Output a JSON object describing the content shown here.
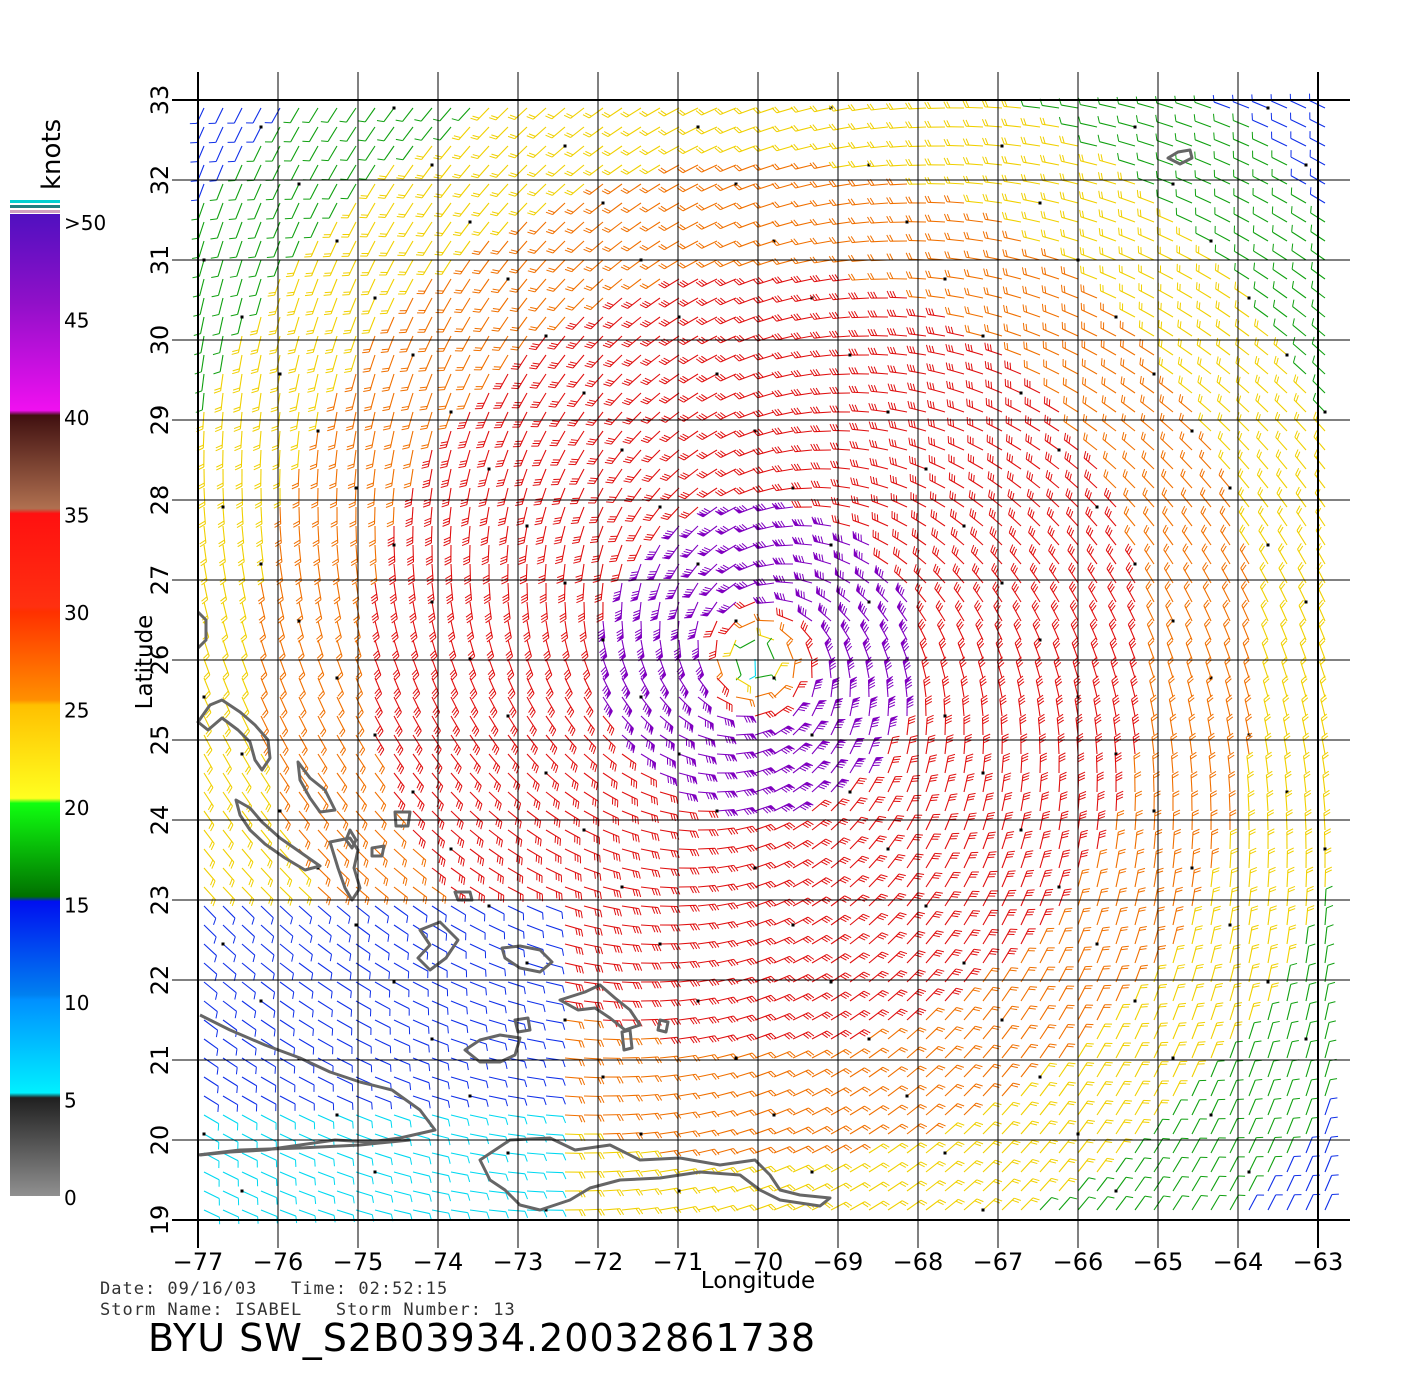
{
  "map": {
    "units_label": "knots",
    "x_axis_label": "Longitude",
    "y_axis_label": "Latitude",
    "x_ticks": [
      "−77",
      "−76",
      "−75",
      "−74",
      "−73",
      "−72",
      "−71",
      "−70",
      "−69",
      "−68",
      "−67",
      "−66",
      "−65",
      "−64",
      "−63"
    ],
    "y_ticks": [
      "19",
      "20",
      "21",
      "22",
      "23",
      "24",
      "25",
      "26",
      "27",
      "28",
      "29",
      "30",
      "31",
      "32",
      "33"
    ],
    "lon_range": [
      -77,
      -63
    ],
    "lat_range": [
      19,
      33
    ],
    "storm_center": {
      "lon": -70.0,
      "lat": 26.0
    },
    "legend": {
      "labels": [
        ">50",
        "45",
        "40",
        "35",
        "30",
        "25",
        "20",
        "15",
        "10",
        "5",
        "0"
      ]
    },
    "colors": {
      "calm": "#666666",
      "cyan": "#00d8f0",
      "blue": "#1030e8",
      "green": "#10a010",
      "yellow": "#f0d000",
      "orange": "#f07000",
      "red": "#e01010",
      "purple": "#8000c0",
      "coast": "#666666"
    }
  },
  "footer": {
    "line1": "Date: 09/16/03   Time: 02:52:15",
    "line2": "Storm Name: ISABEL   Storm Number: 13",
    "title": "BYU SW_S2B03934.20032861738"
  }
}
